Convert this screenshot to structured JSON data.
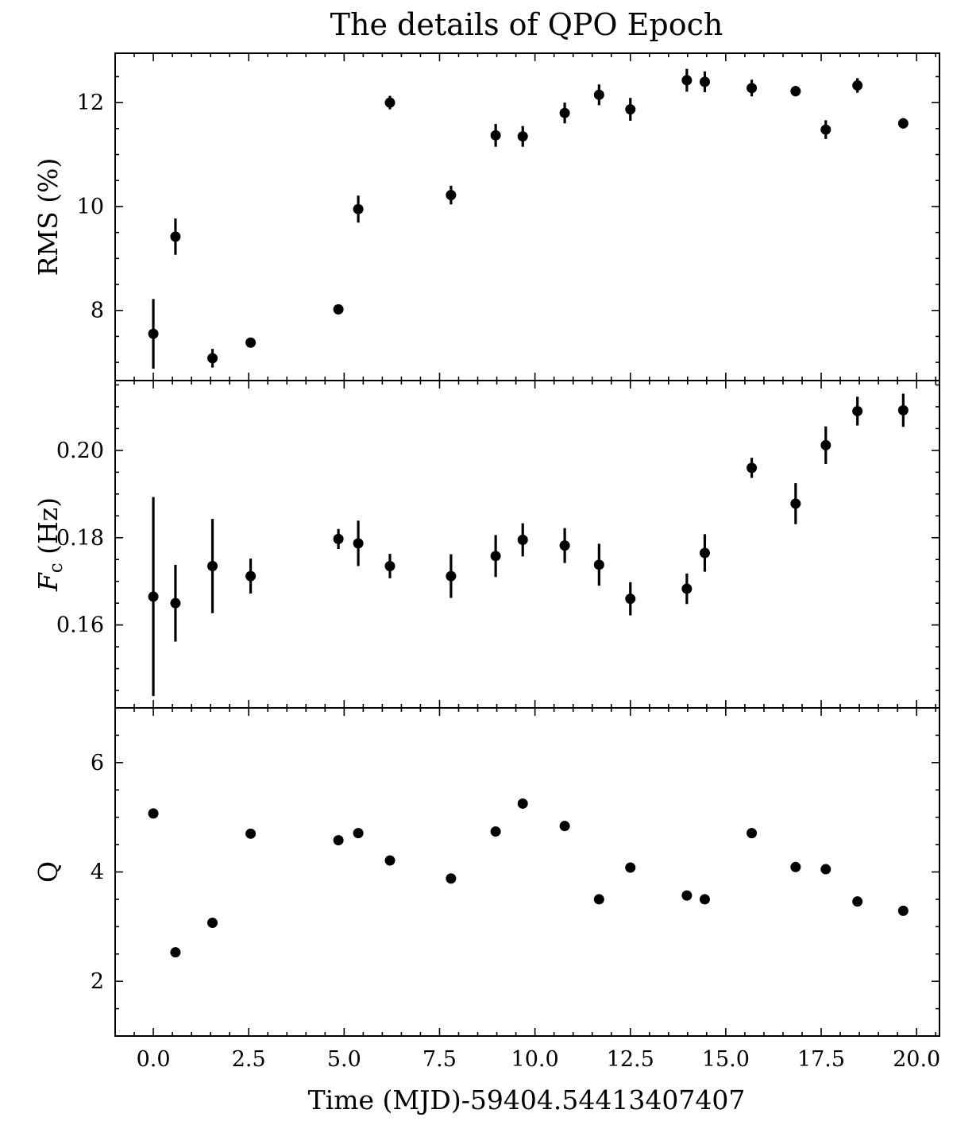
{
  "chart_data": {
    "type": "scatter",
    "title": "The details of QPO Epoch",
    "xlabel": "Time (MJD)-59404.54413407407",
    "xlim": [
      -1.0,
      20.6
    ],
    "xticks": [
      0.0,
      2.5,
      5.0,
      7.5,
      10.0,
      12.5,
      15.0,
      17.5,
      20.0
    ],
    "xtick_labels": [
      "0.0",
      "2.5",
      "5.0",
      "7.5",
      "10.0",
      "12.5",
      "15.0",
      "17.5",
      "20.0"
    ],
    "x": [
      0.0,
      0.58,
      1.55,
      2.55,
      4.85,
      5.37,
      6.2,
      7.8,
      8.97,
      9.68,
      10.78,
      11.68,
      12.5,
      13.98,
      14.45,
      15.68,
      16.83,
      17.62,
      18.45,
      19.65
    ],
    "panels": [
      {
        "name": "rms",
        "ylabel": "RMS (%)",
        "ylim": [
          6.65,
          12.95
        ],
        "yticks": [
          8,
          10,
          12
        ],
        "ytick_labels": [
          "8",
          "10",
          "12"
        ],
        "values": [
          7.55,
          9.42,
          7.08,
          7.38,
          8.02,
          9.95,
          12.0,
          10.22,
          11.37,
          11.35,
          11.8,
          12.15,
          11.87,
          12.43,
          12.4,
          12.28,
          12.22,
          11.48,
          12.33,
          11.6
        ],
        "errors": [
          0.67,
          0.35,
          0.18,
          0.08,
          0.06,
          0.26,
          0.13,
          0.18,
          0.22,
          0.2,
          0.2,
          0.2,
          0.22,
          0.22,
          0.2,
          0.16,
          0.1,
          0.18,
          0.14,
          0.1
        ]
      },
      {
        "name": "frequency",
        "ylabel_main": "F",
        "ylabel_sub": "c",
        "ylabel_unit": " (Hz)",
        "ylim": [
          0.141,
          0.216
        ],
        "yticks": [
          0.16,
          0.18,
          0.2
        ],
        "ytick_labels": [
          "0.16",
          "0.18",
          "0.20"
        ],
        "values": [
          0.1665,
          0.165,
          0.1735,
          0.1712,
          0.1797,
          0.1787,
          0.1735,
          0.1712,
          0.1758,
          0.1795,
          0.1782,
          0.1738,
          0.166,
          0.1683,
          0.1765,
          0.196,
          0.1878,
          0.2012,
          0.209,
          0.2092
        ],
        "errors": [
          0.0228,
          0.0088,
          0.0108,
          0.004,
          0.0023,
          0.0052,
          0.0028,
          0.005,
          0.0048,
          0.0038,
          0.004,
          0.0048,
          0.0038,
          0.0035,
          0.0043,
          0.0023,
          0.0047,
          0.0043,
          0.0033,
          0.0038
        ]
      },
      {
        "name": "q",
        "ylabel": "Q",
        "ylim": [
          1.0,
          7.0
        ],
        "yticks": [
          2,
          4,
          6
        ],
        "ytick_labels": [
          "2",
          "4",
          "6"
        ],
        "values": [
          5.07,
          2.53,
          3.07,
          4.7,
          4.58,
          4.71,
          4.21,
          3.88,
          4.74,
          5.25,
          4.84,
          3.5,
          4.08,
          3.57,
          3.5,
          4.71,
          4.09,
          4.05,
          3.46,
          3.29
        ]
      }
    ]
  }
}
